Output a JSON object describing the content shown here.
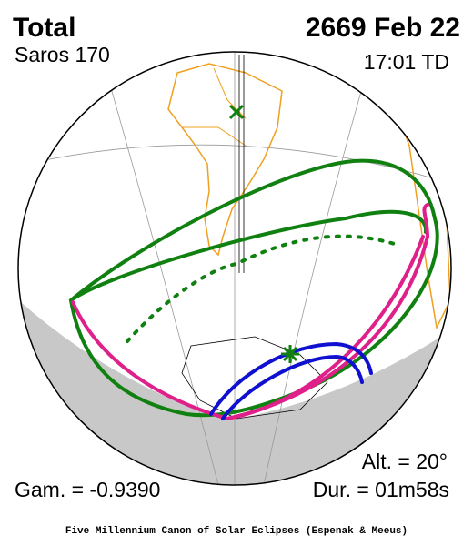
{
  "header": {
    "title": "Total",
    "date": "2669 Feb 22",
    "saros": "Saros 170",
    "time": "17:01 TD"
  },
  "footer": {
    "altitude": "Alt. = 20°",
    "gamma": "Gam. = -0.9390",
    "duration": "Dur. = 01m58s",
    "credit": "Five Millennium Canon of Solar Eclipses (Espenak & Meeus)"
  }
}
